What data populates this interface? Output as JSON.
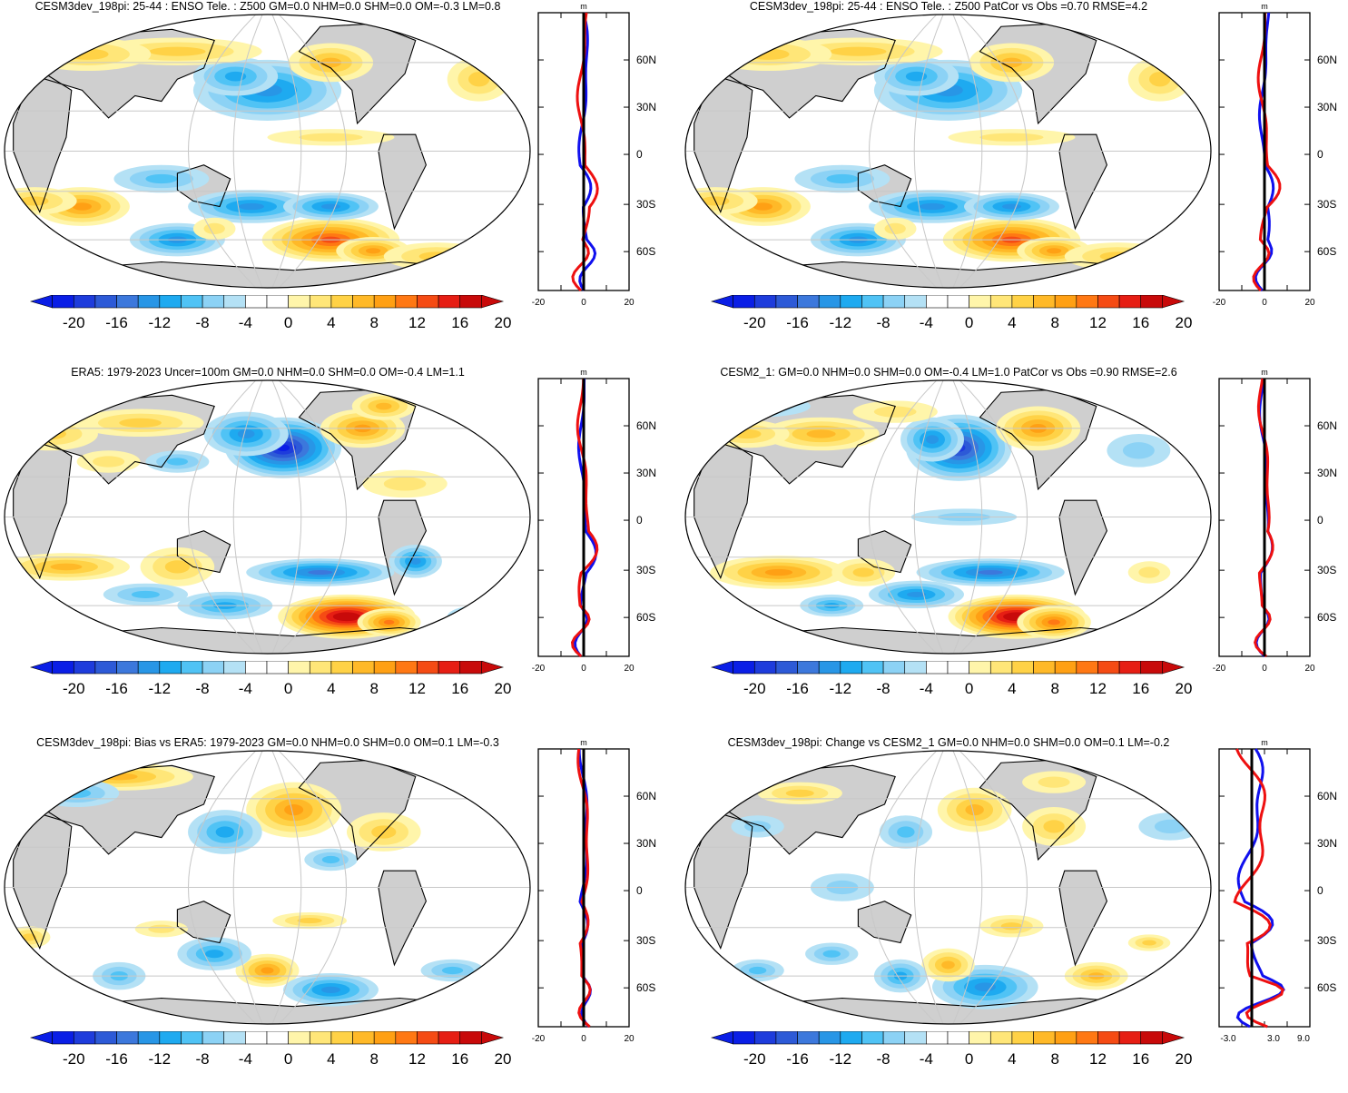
{
  "colorbar": {
    "colors": [
      "#0a1ee6",
      "#1e3cdc",
      "#2d5ad7",
      "#3c78dc",
      "#2896e6",
      "#1eaaf0",
      "#50c3f5",
      "#8cd2f5",
      "#b4e1f5",
      "#ffffff",
      "#ffffff",
      "#fff5aa",
      "#ffe678",
      "#ffd246",
      "#ffb928",
      "#ffa014",
      "#ff7814",
      "#f54b14",
      "#e61e14",
      "#c80a0a"
    ],
    "labels": [
      "-20",
      "-16",
      "-12",
      "-8",
      "-4",
      "0",
      "4",
      "8",
      "12",
      "16",
      "20"
    ]
  },
  "profile_colors": {
    "nh": "#1010ee",
    "sh": "#ee1010",
    "zero": "#000000"
  },
  "panels": [
    {
      "id": "p1",
      "title": "CESM3dev_198pi: 25-44 : ENSO Tele. : Z500 GM=0.0 NHM=0.0 SHM=0.0 OM=-0.3 LM=0.8",
      "profile": {
        "unit": "m",
        "xticks": [
          "-20",
          "0",
          "20"
        ],
        "lat_labels": [
          "60N",
          "30N",
          "0",
          "30S",
          "60S"
        ]
      },
      "chart_data": {
        "type": "heatmap",
        "variable": "Z500 ENSO teleconnection",
        "units": "m",
        "clim": [
          -22,
          22
        ],
        "GM": 0.0,
        "NHM": 0.0,
        "SHM": 0.0,
        "OM": -0.3,
        "LM": 0.8,
        "features": [
          {
            "region": "North Pacific",
            "sign": "negative",
            "peak": -12
          },
          {
            "region": "North America / Canada",
            "sign": "positive",
            "peak": 8
          },
          {
            "region": "Amundsen-Bellingshausen Sea",
            "sign": "positive",
            "peak": 18
          },
          {
            "region": "South Pacific 40S",
            "sign": "negative",
            "peak": -12
          },
          {
            "region": "Southern Indian Ocean",
            "sign": "negative",
            "peak": -10
          }
        ]
      }
    },
    {
      "id": "p2",
      "title": "CESM3dev_198pi: 25-44 : ENSO Tele. : Z500 PatCor vs Obs =0.70 RMSE=4.2",
      "profile": {
        "unit": "m",
        "xticks": [
          "-20",
          "0",
          "20"
        ],
        "lat_labels": [
          "60N",
          "30N",
          "0",
          "30S",
          "60S"
        ]
      },
      "chart_data": {
        "type": "heatmap",
        "variable": "Z500 ENSO teleconnection",
        "units": "m",
        "clim": [
          -22,
          22
        ],
        "PatCor": 0.7,
        "RMSE": 4.2,
        "features": [
          {
            "region": "North Pacific",
            "sign": "negative",
            "peak": -12
          },
          {
            "region": "North America / Canada",
            "sign": "positive",
            "peak": 8
          },
          {
            "region": "Amundsen-Bellingshausen Sea",
            "sign": "positive",
            "peak": 18
          },
          {
            "region": "South Pacific 40S",
            "sign": "negative",
            "peak": -12
          }
        ]
      }
    },
    {
      "id": "p3",
      "title": "ERA5: 1979-2023 Uncer=100m GM=0.0 NHM=0.0 SHM=0.0 OM=-0.4 LM=1.1",
      "profile": {
        "unit": "m",
        "xticks": [
          "-20",
          "0",
          "20"
        ],
        "lat_labels": [
          "60N",
          "30N",
          "0",
          "30S",
          "60S"
        ]
      },
      "chart_data": {
        "type": "heatmap",
        "variable": "Z500 ENSO teleconnection",
        "units": "m",
        "clim": [
          -22,
          22
        ],
        "GM": 0.0,
        "NHM": 0.0,
        "SHM": 0.0,
        "OM": -0.4,
        "LM": 1.1,
        "features": [
          {
            "region": "North Pacific",
            "sign": "negative",
            "peak": -20
          },
          {
            "region": "North America / Canada",
            "sign": "positive",
            "peak": 12
          },
          {
            "region": "Amundsen-Bellingshausen Sea",
            "sign": "positive",
            "peak": 22
          },
          {
            "region": "South Pacific 35S",
            "sign": "negative",
            "peak": -16
          }
        ]
      }
    },
    {
      "id": "p4",
      "title": "CESM2_1: GM=0.0 NHM=0.0 SHM=0.0 OM=-0.4 LM=1.0 PatCor vs Obs =0.90 RMSE=2.6",
      "profile": {
        "unit": "m",
        "xticks": [
          "-20",
          "0",
          "20"
        ],
        "lat_labels": [
          "60N",
          "30N",
          "0",
          "30S",
          "60S"
        ]
      },
      "chart_data": {
        "type": "heatmap",
        "variable": "Z500 ENSO teleconnection",
        "units": "m",
        "clim": [
          -22,
          22
        ],
        "GM": 0.0,
        "NHM": 0.0,
        "SHM": 0.0,
        "OM": -0.4,
        "LM": 1.0,
        "PatCor": 0.9,
        "RMSE": 2.6,
        "features": [
          {
            "region": "North Pacific",
            "sign": "negative",
            "peak": -18
          },
          {
            "region": "North America / Canada",
            "sign": "positive",
            "peak": 10
          },
          {
            "region": "Amundsen-Bellingshausen Sea",
            "sign": "positive",
            "peak": 22
          },
          {
            "region": "South Pacific 35S",
            "sign": "negative",
            "peak": -14
          },
          {
            "region": "Southern Indian Ocean",
            "sign": "positive",
            "peak": 8
          }
        ]
      }
    },
    {
      "id": "p5",
      "title": "CESM3dev_198pi: Bias vs ERA5: 1979-2023 GM=0.0 NHM=0.0 SHM=0.0 OM=0.1 LM=-0.3",
      "profile": {
        "unit": "m",
        "xticks": [
          "-20",
          "0",
          "20"
        ],
        "lat_labels": [
          "60N",
          "30N",
          "0",
          "30S",
          "60S"
        ]
      },
      "chart_data": {
        "type": "heatmap",
        "variable": "Z500 bias",
        "units": "m",
        "clim": [
          -22,
          22
        ],
        "GM": 0.0,
        "NHM": 0.0,
        "SHM": 0.0,
        "OM": 0.1,
        "LM": -0.3,
        "features": [
          {
            "region": "Eurasia 60N",
            "sign": "positive",
            "peak": 8
          },
          {
            "region": "North Pacific",
            "sign": "positive",
            "peak": 10
          },
          {
            "region": "East Asia 40N",
            "sign": "negative",
            "peak": -8
          },
          {
            "region": "New Zealand region",
            "sign": "positive",
            "peak": 12
          },
          {
            "region": "South Pacific 60S",
            "sign": "negative",
            "peak": -10
          }
        ]
      }
    },
    {
      "id": "p6",
      "title": "CESM3dev_198pi: Change vs CESM2_1 GM=0.0 NHM=0.0 SHM=0.0 OM=0.1 LM=-0.2",
      "profile": {
        "unit": "m",
        "xticks": [
          "-3.0",
          "3.0",
          "9.0"
        ],
        "lat_labels": [
          "60N",
          "30N",
          "0",
          "30S",
          "60S"
        ]
      },
      "chart_data": {
        "type": "heatmap",
        "variable": "Z500 change",
        "units": "m",
        "clim": [
          -22,
          22
        ],
        "GM": 0.0,
        "NHM": 0.0,
        "SHM": 0.0,
        "OM": 0.1,
        "LM": -0.2,
        "features": [
          {
            "region": "North Pacific",
            "sign": "positive",
            "peak": 8
          },
          {
            "region": "South Pacific 50S",
            "sign": "negative",
            "peak": -10
          },
          {
            "region": "New Zealand region",
            "sign": "positive",
            "peak": 8
          },
          {
            "region": "South Atlantic 45S",
            "sign": "positive",
            "peak": 8
          }
        ]
      }
    }
  ]
}
